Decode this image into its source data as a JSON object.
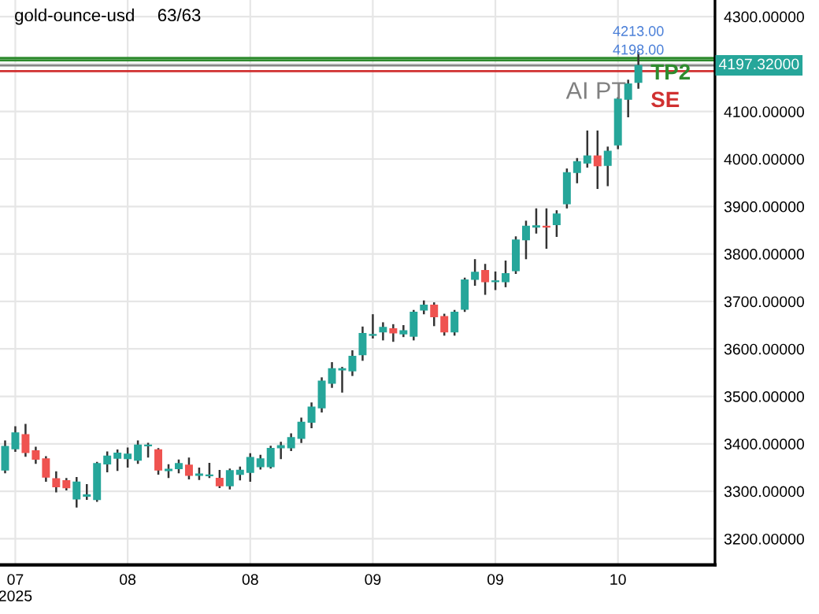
{
  "chart_data": {
    "type": "candlestick",
    "title": "gold-ounce-usd",
    "subtitle": "63/63",
    "categories": [
      null,
      "07\n2025",
      null,
      null,
      null,
      null,
      null,
      null,
      null,
      null,
      null,
      null,
      "08",
      null,
      null,
      null,
      null,
      null,
      null,
      null,
      null,
      null,
      null,
      null,
      "08",
      null,
      null,
      null,
      null,
      null,
      null,
      null,
      null,
      null,
      null,
      null,
      "09",
      null,
      null,
      null,
      null,
      null,
      null,
      null,
      null,
      null,
      null,
      null,
      "09",
      null,
      null,
      null,
      null,
      null,
      null,
      null,
      null,
      null,
      null,
      null,
      "10",
      null,
      null
    ],
    "ohlc": [
      [
        3345,
        3405,
        3340,
        3394
      ],
      [
        3390,
        3435,
        3385,
        3423
      ],
      [
        3419,
        3440,
        3375,
        3382
      ],
      [
        3385,
        3392,
        3360,
        3368
      ],
      [
        3368,
        3372,
        3322,
        3330
      ],
      [
        3326,
        3340,
        3300,
        3310
      ],
      [
        3322,
        3326,
        3304,
        3308
      ],
      [
        3284,
        3328,
        3268,
        3319
      ],
      [
        3290,
        3313,
        3284,
        3292
      ],
      [
        3283,
        3360,
        3280,
        3358
      ],
      [
        3358,
        3382,
        3342,
        3374
      ],
      [
        3370,
        3386,
        3345,
        3380
      ],
      [
        3369,
        3390,
        3352,
        3378
      ],
      [
        3366,
        3405,
        3360,
        3397
      ],
      [
        3396,
        3400,
        3373,
        3397
      ],
      [
        3387,
        3389,
        3337,
        3345
      ],
      [
        3344,
        3355,
        3330,
        3346
      ],
      [
        3348,
        3365,
        3340,
        3358
      ],
      [
        3355,
        3369,
        3327,
        3334
      ],
      [
        3334,
        3348,
        3326,
        3336
      ],
      [
        3333,
        3358,
        3330,
        3334
      ],
      [
        3327,
        3343,
        3309,
        3312
      ],
      [
        3312,
        3346,
        3306,
        3343
      ],
      [
        3336,
        3350,
        3325,
        3344
      ],
      [
        3340,
        3378,
        3322,
        3371
      ],
      [
        3352,
        3375,
        3348,
        3368
      ],
      [
        3352,
        3394,
        3350,
        3390
      ],
      [
        3392,
        3402,
        3370,
        3396
      ],
      [
        3392,
        3420,
        3387,
        3413
      ],
      [
        3412,
        3453,
        3404,
        3445
      ],
      [
        3446,
        3485,
        3435,
        3477
      ],
      [
        3476,
        3538,
        3468,
        3532
      ],
      [
        3528,
        3570,
        3520,
        3558
      ],
      [
        3556,
        3560,
        3510,
        3558
      ],
      [
        3554,
        3595,
        3545,
        3584
      ],
      [
        3588,
        3645,
        3577,
        3632
      ],
      [
        3629,
        3671,
        3624,
        3630
      ],
      [
        3636,
        3654,
        3620,
        3645
      ],
      [
        3642,
        3650,
        3617,
        3634
      ],
      [
        3632,
        3648,
        3627,
        3638
      ],
      [
        3627,
        3680,
        3620,
        3677
      ],
      [
        3682,
        3700,
        3675,
        3692
      ],
      [
        3692,
        3696,
        3650,
        3668
      ],
      [
        3668,
        3672,
        3630,
        3636
      ],
      [
        3636,
        3680,
        3630,
        3677
      ],
      [
        3684,
        3748,
        3680,
        3745
      ],
      [
        3747,
        3787,
        3735,
        3761
      ],
      [
        3765,
        3777,
        3716,
        3742
      ],
      [
        3742,
        3761,
        3726,
        3743
      ],
      [
        3742,
        3784,
        3732,
        3758
      ],
      [
        3765,
        3835,
        3760,
        3829
      ],
      [
        3830,
        3868,
        3791,
        3858
      ],
      [
        3857,
        3894,
        3845,
        3859
      ],
      [
        3858,
        3894,
        3813,
        3857
      ],
      [
        3862,
        3890,
        3838,
        3884
      ],
      [
        3906,
        3978,
        3898,
        3971
      ],
      [
        3972,
        4000,
        3951,
        3994
      ],
      [
        3992,
        4058,
        3984,
        4006
      ],
      [
        4006,
        4058,
        3939,
        3986
      ],
      [
        3987,
        4024,
        3945,
        4016
      ],
      [
        4030,
        4128,
        4023,
        4126
      ],
      [
        4126,
        4165,
        4090,
        4158
      ],
      [
        4162,
        4223,
        4150,
        4197
      ]
    ],
    "colors": [
      "#26a69a",
      "#26a69a",
      "#ef5350",
      "#ef5350",
      "#ef5350",
      "#ef5350",
      "#ef5350",
      "#26a69a",
      "#26a69a",
      "#26a69a",
      "#26a69a",
      "#26a69a",
      "#26a69a",
      "#26a69a",
      "#26a69a",
      "#ef5350",
      "#26a69a",
      "#26a69a",
      "#ef5350",
      "#26a69a",
      "#26a69a",
      "#ef5350",
      "#26a69a",
      "#26a69a",
      "#26a69a",
      "#26a69a",
      "#26a69a",
      "#26a69a",
      "#26a69a",
      "#26a69a",
      "#26a69a",
      "#26a69a",
      "#26a69a",
      "#26a69a",
      "#26a69a",
      "#26a69a",
      "#26a69a",
      "#26a69a",
      "#ef5350",
      "#26a69a",
      "#26a69a",
      "#26a69a",
      "#ef5350",
      "#ef5350",
      "#26a69a",
      "#26a69a",
      "#26a69a",
      "#ef5350",
      "#26a69a",
      "#26a69a",
      "#26a69a",
      "#26a69a",
      "#26a69a",
      "#ef5350",
      "#26a69a",
      "#26a69a",
      "#26a69a",
      "#26a69a",
      "#ef5350",
      "#26a69a",
      "#26a69a",
      "#26a69a",
      "#26a69a"
    ],
    "ylim": [
      3145,
      4335
    ],
    "yticks": [
      {
        "value": 3200,
        "label": "3200.00000"
      },
      {
        "value": 3300,
        "label": "3300.00000"
      },
      {
        "value": 3400,
        "label": "3400.00000"
      },
      {
        "value": 3500,
        "label": "3500.00000"
      },
      {
        "value": 3600,
        "label": "3600.00000"
      },
      {
        "value": 3700,
        "label": "3700.00000"
      },
      {
        "value": 3800,
        "label": "3800.00000"
      },
      {
        "value": 3900,
        "label": "3900.00000"
      },
      {
        "value": 4000,
        "label": "4000.00000"
      },
      {
        "value": 4100,
        "label": "4100.00000"
      },
      {
        "value": 4200,
        "label": null
      },
      {
        "value": 4300,
        "label": "4300.00000"
      }
    ],
    "ref_lines": [
      {
        "axis": "y",
        "value": 4213,
        "label": "TP2",
        "color": "#2e8b2e"
      },
      {
        "axis": "y",
        "value": 4208,
        "color": "#2e8b2e"
      },
      {
        "axis": "y",
        "value": 4197.32,
        "label": "4197.32000",
        "color": "#888888"
      },
      {
        "axis": "y",
        "value": 4185,
        "label": "SE",
        "color": "#d03030"
      }
    ],
    "annotations": [
      {
        "text": "4213.00",
        "y": 4213
      },
      {
        "text": "4198.00",
        "y": 4198
      },
      "AI PT"
    ],
    "grid": true
  }
}
